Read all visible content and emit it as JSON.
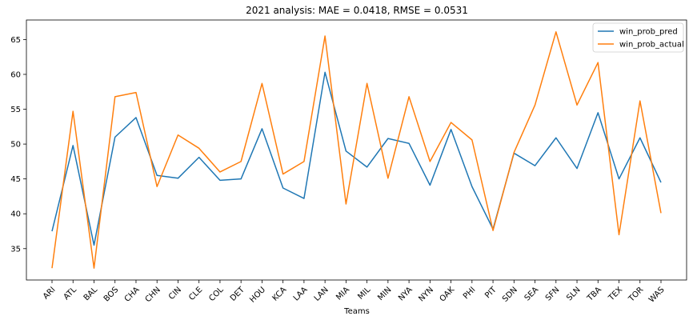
{
  "chart_data": {
    "type": "line",
    "title": "2021 analysis: MAE = 0.0418, RMSE = 0.0531",
    "xlabel": "Teams",
    "ylabel": "",
    "categories": [
      "ARI",
      "ATL",
      "BAL",
      "BOS",
      "CHA",
      "CHN",
      "CIN",
      "CLE",
      "COL",
      "DET",
      "HOU",
      "KCA",
      "LAA",
      "LAN",
      "MIA",
      "MIL",
      "MIN",
      "NYA",
      "NYN",
      "OAK",
      "PHI",
      "PIT",
      "SDN",
      "SEA",
      "SFN",
      "SLN",
      "TBA",
      "TEX",
      "TOR",
      "WAS"
    ],
    "series": [
      {
        "name": "win_prob_pred",
        "color": "#1f77b4",
        "values": [
          37.5,
          49.8,
          35.5,
          51.0,
          53.8,
          45.5,
          45.1,
          48.1,
          44.8,
          45.0,
          52.2,
          43.7,
          42.2,
          60.3,
          49.0,
          46.7,
          50.8,
          50.1,
          44.1,
          52.1,
          43.9,
          37.8,
          48.7,
          46.9,
          50.9,
          46.5,
          54.5,
          45.0,
          50.9,
          44.5
        ]
      },
      {
        "name": "win_prob_actual",
        "color": "#ff7f0e",
        "values": [
          32.2,
          54.7,
          32.2,
          56.8,
          57.4,
          43.9,
          51.3,
          49.4,
          46.0,
          47.5,
          58.7,
          45.7,
          47.5,
          65.5,
          41.4,
          58.7,
          45.1,
          56.8,
          47.5,
          53.1,
          50.6,
          37.6,
          48.8,
          55.6,
          66.1,
          55.6,
          61.7,
          37.0,
          56.2,
          40.1
        ]
      }
    ],
    "yticks": [
      35,
      40,
      45,
      50,
      55,
      60,
      65
    ],
    "ylim": [
      30.5,
      67.8
    ],
    "grid": false,
    "legend_position": "top-right"
  }
}
